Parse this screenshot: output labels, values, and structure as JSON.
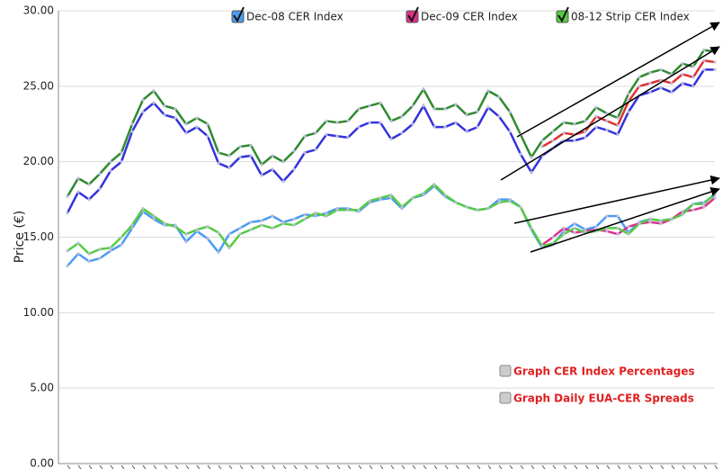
{
  "chart_data": {
    "type": "line",
    "y_label": "Price (€)",
    "categories": [
      null,
      null,
      null,
      null,
      null,
      null,
      null,
      null,
      null,
      null,
      null,
      null,
      null,
      null,
      null,
      null,
      null,
      null,
      null,
      null,
      null,
      null,
      null,
      null,
      null,
      null,
      null,
      null,
      null,
      null,
      null,
      null,
      null,
      null,
      null,
      null,
      null,
      null,
      null,
      null,
      null,
      null,
      null,
      null,
      null,
      null,
      null,
      null,
      null,
      null,
      null,
      null,
      null,
      null,
      null,
      null,
      null,
      null,
      null,
      null,
      null
    ],
    "ylim": [
      0,
      30
    ],
    "yticks": [
      {
        "value": 0,
        "label": "0.00"
      },
      {
        "value": 5,
        "label": "5.00"
      },
      {
        "value": 10,
        "label": "10.00"
      },
      {
        "value": 15,
        "label": "15.00"
      },
      {
        "value": 20,
        "label": "20.00"
      },
      {
        "value": 25,
        "label": "25.00"
      },
      {
        "value": 30,
        "label": "30.00"
      }
    ],
    "grid": true,
    "series": [
      {
        "color": "#2e8b2e",
        "values": [
          17.7,
          18.9,
          18.5,
          19.2,
          20.0,
          20.6,
          22.5,
          24.1,
          24.7,
          23.7,
          23.5,
          22.5,
          22.9,
          22.5,
          20.6,
          20.4,
          21.0,
          21.1,
          19.8,
          20.4,
          20.0,
          20.7,
          21.7,
          21.9,
          22.7,
          22.6,
          22.7,
          23.5,
          23.7,
          23.9,
          22.7,
          23.0,
          23.7,
          24.8,
          23.5,
          23.5,
          23.8,
          23.1,
          23.3,
          24.7,
          24.3,
          23.3,
          21.8,
          20.3,
          21.4,
          22.0,
          22.6,
          22.5,
          22.7,
          23.6,
          23.2,
          22.9,
          24.5,
          25.6,
          25.9,
          26.1,
          25.8,
          26.5,
          26.3,
          27.4,
          27.3
        ]
      },
      {
        "color": "#e03030",
        "values": [
          null,
          null,
          null,
          null,
          null,
          null,
          null,
          null,
          null,
          null,
          null,
          null,
          null,
          null,
          null,
          null,
          null,
          null,
          null,
          null,
          null,
          null,
          null,
          null,
          null,
          null,
          null,
          null,
          null,
          null,
          null,
          null,
          null,
          null,
          null,
          null,
          null,
          null,
          null,
          null,
          null,
          null,
          null,
          null,
          21.0,
          21.4,
          21.9,
          21.8,
          22.0,
          23.0,
          22.7,
          22.4,
          24.0,
          25.0,
          25.2,
          25.4,
          25.2,
          25.8,
          25.6,
          26.7,
          26.6
        ]
      },
      {
        "color": "#3333dd",
        "values": [
          16.6,
          18.0,
          17.5,
          18.2,
          19.4,
          20.0,
          22.0,
          23.3,
          23.9,
          23.1,
          22.9,
          21.9,
          22.3,
          21.7,
          19.9,
          19.6,
          20.3,
          20.4,
          19.1,
          19.5,
          18.7,
          19.5,
          20.6,
          20.8,
          21.8,
          21.7,
          21.6,
          22.3,
          22.6,
          22.6,
          21.5,
          21.9,
          22.5,
          23.7,
          22.3,
          22.3,
          22.6,
          22.0,
          22.3,
          23.6,
          23.0,
          22.0,
          20.5,
          19.3,
          20.4,
          20.9,
          21.4,
          21.4,
          21.6,
          22.3,
          22.1,
          21.8,
          23.3,
          24.4,
          24.6,
          24.9,
          24.6,
          25.2,
          25.0,
          26.1,
          26.1
        ]
      },
      {
        "name": "Dec-08 CER Index",
        "color": "#4a9cf0",
        "values": [
          13.1,
          13.9,
          13.4,
          13.6,
          14.1,
          14.5,
          15.6,
          16.7,
          16.2,
          15.8,
          15.8,
          14.7,
          15.4,
          14.9,
          14.0,
          15.2,
          15.6,
          16.0,
          16.1,
          16.4,
          16.0,
          16.2,
          16.5,
          16.4,
          16.6,
          16.9,
          16.9,
          16.7,
          17.3,
          17.5,
          17.6,
          16.9,
          17.6,
          17.8,
          18.4,
          17.7,
          17.3,
          17.0,
          16.8,
          16.9,
          17.5,
          17.5,
          17.0,
          15.5,
          14.3,
          14.5,
          15.4,
          15.9,
          15.5,
          15.7,
          16.4,
          16.4,
          15.3,
          16.0,
          16.2,
          16.1,
          16.2,
          16.6,
          17.2,
          17.3,
          17.8
        ]
      },
      {
        "name": "Dec-09 CER Index",
        "color": "#e0308a",
        "values": [
          null,
          null,
          null,
          null,
          null,
          null,
          null,
          null,
          null,
          null,
          null,
          null,
          null,
          null,
          null,
          null,
          null,
          null,
          null,
          null,
          null,
          null,
          null,
          null,
          null,
          null,
          null,
          null,
          null,
          null,
          null,
          null,
          null,
          null,
          null,
          null,
          null,
          null,
          null,
          null,
          null,
          null,
          null,
          null,
          14.5,
          15.0,
          15.6,
          15.3,
          15.4,
          15.5,
          15.4,
          15.2,
          15.7,
          15.9,
          16.0,
          15.9,
          16.2,
          16.7,
          16.8,
          17.0,
          17.6
        ]
      },
      {
        "name": "08-12 Strip CER Index",
        "color": "#55cc40",
        "values": [
          14.1,
          14.6,
          13.9,
          14.2,
          14.3,
          15.0,
          15.8,
          16.9,
          16.4,
          15.9,
          15.7,
          15.2,
          15.5,
          15.7,
          15.3,
          14.3,
          15.2,
          15.5,
          15.8,
          15.6,
          15.9,
          15.8,
          16.2,
          16.6,
          16.4,
          16.8,
          16.8,
          16.8,
          17.4,
          17.6,
          17.8,
          17.0,
          17.6,
          17.9,
          18.5,
          17.8,
          17.3,
          17.0,
          16.8,
          16.9,
          17.3,
          17.4,
          17.0,
          15.6,
          14.4,
          14.6,
          15.2,
          15.6,
          15.3,
          15.4,
          15.6,
          15.6,
          15.2,
          15.9,
          16.2,
          16.1,
          16.2,
          16.5,
          17.2,
          17.2,
          17.9
        ]
      }
    ],
    "options": [
      "Graph CER Index Percentages",
      "Graph Daily EUA-CER Spreads"
    ]
  }
}
